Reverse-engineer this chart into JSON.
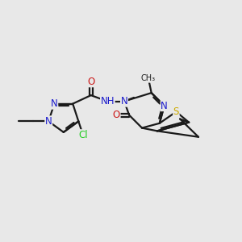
{
  "bg": "#e8e8e8",
  "bond_color": "#1a1a1a",
  "bond_lw": 1.6,
  "dbl_off": 0.055,
  "atom_colors": {
    "N": "#1a1acc",
    "O": "#cc1a1a",
    "Cl": "#22cc22",
    "S": "#ccaa00",
    "C": "#1a1a1a",
    "H": "#888888"
  },
  "fs": 8.5,
  "figsize": [
    3.0,
    3.0
  ],
  "dpi": 100,
  "xlim": [
    -0.5,
    7.5
  ],
  "ylim": [
    -0.2,
    4.2
  ]
}
